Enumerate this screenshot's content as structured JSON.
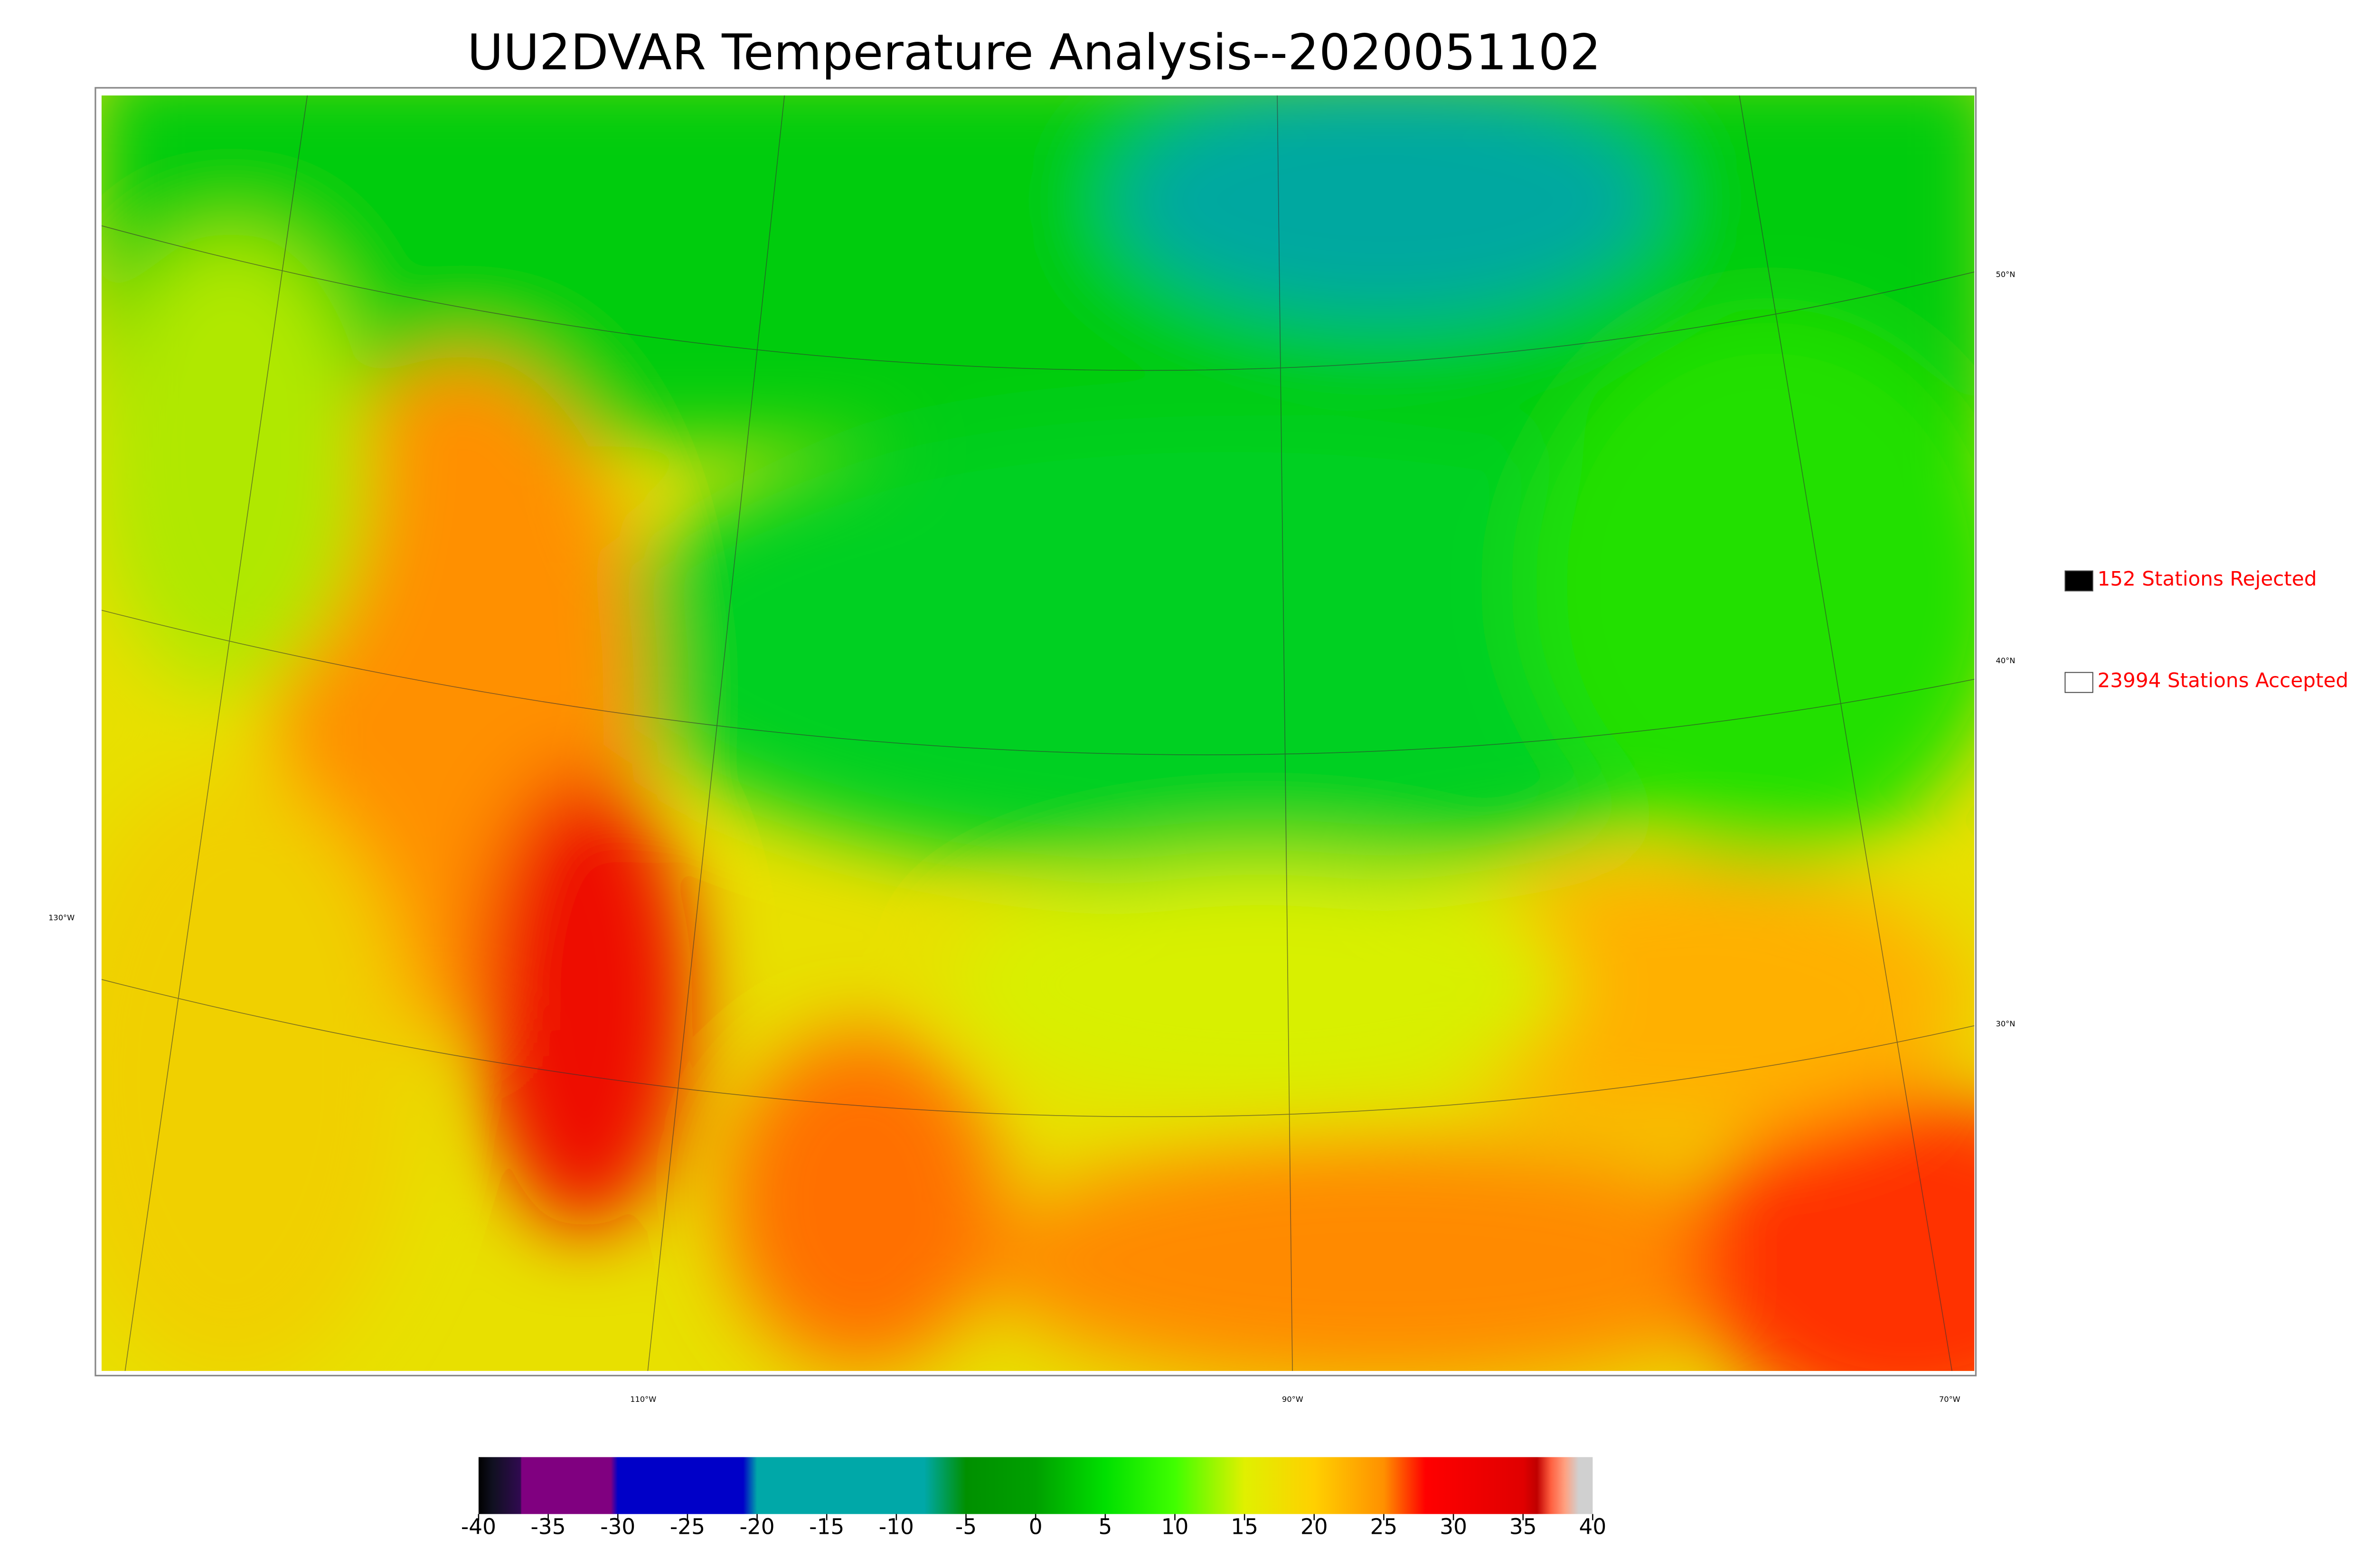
{
  "title": "UU2DVAR Temperature Analysis--2020051102",
  "legend": [
    {
      "label": "152 Stations Rejected",
      "color": "#000000"
    },
    {
      "label": "23994 Stations Accepted",
      "color": "#ffffff"
    }
  ],
  "graticule": {
    "lon_labels": [
      "130°W",
      "110°W",
      "90°W",
      "70°W"
    ],
    "lat_labels": [
      "50°N",
      "40°N",
      "30°N"
    ]
  },
  "colorbar": {
    "lim": [
      -40,
      40
    ],
    "ticks": [
      -40,
      -35,
      -30,
      -25,
      -20,
      -15,
      -10,
      -5,
      0,
      5,
      10,
      15,
      20,
      25,
      30,
      35,
      40
    ],
    "stops": [
      {
        "value": -40,
        "color": "#000000"
      },
      {
        "value": -39,
        "color": "#101020"
      },
      {
        "value": -37,
        "color": "#300a50"
      },
      {
        "value": -36.9,
        "color": "#800080"
      },
      {
        "value": -30.5,
        "color": "#800080"
      },
      {
        "value": -30,
        "color": "#0000c8"
      },
      {
        "value": -21,
        "color": "#0000c8"
      },
      {
        "value": -20,
        "color": "#00a8a8"
      },
      {
        "value": -8,
        "color": "#00a8a8"
      },
      {
        "value": -5,
        "color": "#009000"
      },
      {
        "value": 0,
        "color": "#00a000"
      },
      {
        "value": 5,
        "color": "#00e000"
      },
      {
        "value": 10,
        "color": "#40ff00"
      },
      {
        "value": 15,
        "color": "#e0f000"
      },
      {
        "value": 20,
        "color": "#ffd000"
      },
      {
        "value": 25,
        "color": "#ff9000"
      },
      {
        "value": 28,
        "color": "#ff0000"
      },
      {
        "value": 35,
        "color": "#e00000"
      },
      {
        "value": 36,
        "color": "#c00000"
      },
      {
        "value": 37,
        "color": "#ff6040"
      },
      {
        "value": 38,
        "color": "#ffa080"
      },
      {
        "value": 39,
        "color": "#d0d0d0"
      },
      {
        "value": 40,
        "color": "#d0d0d0"
      }
    ]
  }
}
